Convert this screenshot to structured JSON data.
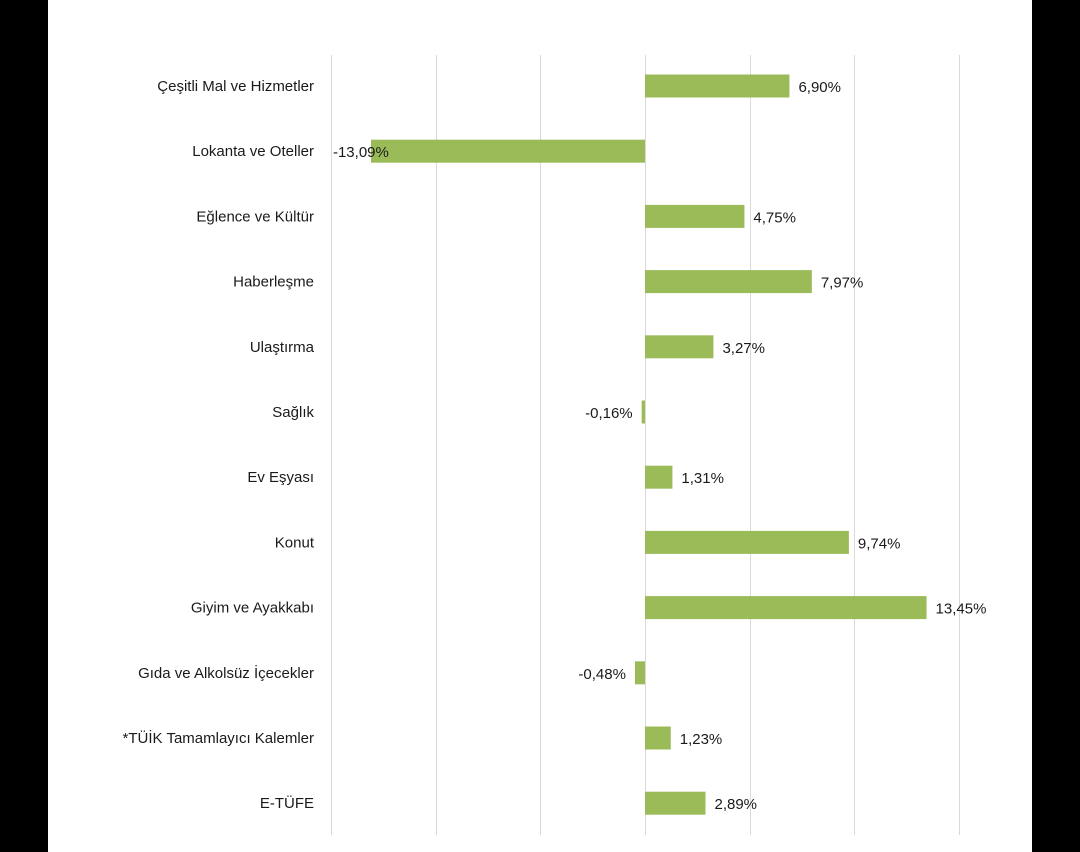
{
  "colors": {
    "bar": "#9bbb59",
    "grid": "#d9d9d9",
    "background": "#ffffff",
    "frame": "#000000"
  },
  "chart_data": {
    "type": "bar",
    "orientation": "horizontal",
    "categories": [
      "Çeşitli Mal ve Hizmetler",
      "Lokanta ve Oteller",
      "Eğlence ve Kültür",
      "Haberleşme",
      "Ulaştırma",
      "Sağlık",
      "Ev Eşyası",
      "Konut",
      "Giyim ve Ayakkabı",
      "Gıda ve Alkolsüz İçecekler",
      "*TÜİK Tamamlayıcı Kalemler",
      "E-TÜFE"
    ],
    "values": [
      6.9,
      -13.09,
      4.75,
      7.97,
      3.27,
      -0.16,
      1.31,
      9.74,
      13.45,
      -0.48,
      1.23,
      2.89
    ],
    "data_labels": [
      "6,90%",
      "-13,09%",
      "4,75%",
      "7,97%",
      "3,27%",
      "-0,16%",
      "1,31%",
      "9,74%",
      "13,45%",
      "-0,48%",
      "1,23%",
      "2,89%"
    ],
    "xlim": [
      -15,
      15
    ],
    "grid_step": 5,
    "grid": true,
    "legend": "none"
  }
}
